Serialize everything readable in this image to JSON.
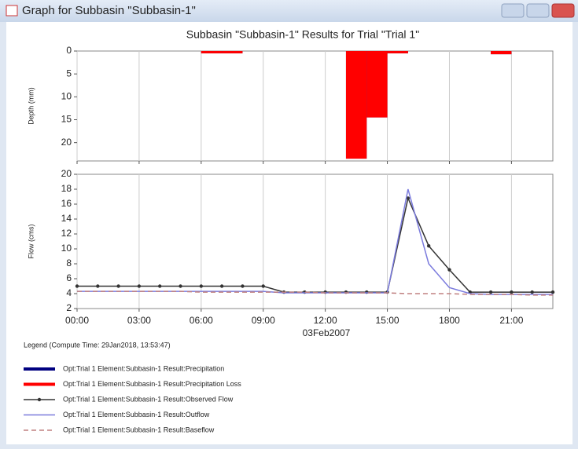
{
  "window": {
    "title": "Graph for Subbasin \"Subbasin-1\""
  },
  "legend": {
    "title": "Legend (Compute Time: 29Jan2018, 13:53:47)"
  },
  "chart_data": [
    {
      "type": "bar",
      "title": "Subbasin \"Subbasin-1\" Results for Trial \"Trial 1\"",
      "ylabel": "Depth (mm)",
      "ylim": [
        0,
        24
      ],
      "yticks": [
        0,
        5,
        10,
        15,
        20
      ],
      "y_inverted": true,
      "xlim": [
        0,
        23
      ],
      "xticks": [
        0,
        3,
        6,
        9,
        12,
        15,
        18,
        21
      ],
      "bar_width": 1,
      "grid": true,
      "series": [
        {
          "name": "Opt:Trial 1 Element:Subbasin-1 Result:Precipitation",
          "color": "#000080",
          "x": [
            6,
            7,
            13,
            14,
            15,
            20
          ],
          "values": [
            0.5,
            0.5,
            23.5,
            14.5,
            0.5,
            0.7
          ]
        },
        {
          "name": "Opt:Trial 1 Element:Subbasin-1 Result:Precipitation Loss",
          "color": "#ff0000",
          "x": [
            6,
            7,
            13,
            14,
            15,
            20
          ],
          "values": [
            0.5,
            0.5,
            23.5,
            14.5,
            0.5,
            0.7
          ]
        }
      ]
    },
    {
      "type": "line",
      "ylabel": "Flow (cms)",
      "xlabel": "03Feb2007",
      "ylim": [
        2,
        20
      ],
      "yticks": [
        2,
        4,
        6,
        8,
        10,
        12,
        14,
        16,
        18,
        20
      ],
      "xlim": [
        0,
        23
      ],
      "xticks": [
        {
          "value": 0,
          "label": "00:00"
        },
        {
          "value": 3,
          "label": "03:00"
        },
        {
          "value": 6,
          "label": "06:00"
        },
        {
          "value": 9,
          "label": "09:00"
        },
        {
          "value": 12,
          "label": "12:00"
        },
        {
          "value": 15,
          "label": "15:00"
        },
        {
          "value": 18,
          "label": "1800"
        },
        {
          "value": 21,
          "label": "21:00"
        }
      ],
      "grid": true,
      "x": [
        0,
        1,
        2,
        3,
        4,
        5,
        6,
        7,
        8,
        9,
        10,
        11,
        12,
        13,
        14,
        15,
        16,
        17,
        18,
        19,
        20,
        21,
        22,
        23
      ],
      "series": [
        {
          "name": "Opt:Trial 1 Element:Subbasin-1 Result:Observed Flow",
          "color": "#333333",
          "markers": true,
          "values": [
            5,
            5,
            5,
            5,
            5,
            5,
            5,
            5,
            5,
            5,
            4.2,
            4.2,
            4.2,
            4.2,
            4.2,
            4.2,
            16.8,
            10.4,
            7.2,
            4.2,
            4.2,
            4.2,
            4.2,
            4.2
          ]
        },
        {
          "name": "Opt:Trial 1 Element:Subbasin-1 Result:Outflow",
          "color": "#7b7bdd",
          "values": [
            4.3,
            4.3,
            4.3,
            4.3,
            4.3,
            4.3,
            4.3,
            4.3,
            4.3,
            4.3,
            4.1,
            4.1,
            4.1,
            4.1,
            4.1,
            4.1,
            18,
            8,
            4.8,
            4,
            3.9,
            3.9,
            3.9,
            3.9
          ]
        },
        {
          "name": "Opt:Trial 1 Element:Subbasin-1 Result:Baseflow",
          "color": "#c08080",
          "dashed": true,
          "values": [
            4.3,
            4.3,
            4.3,
            4.3,
            4.3,
            4.3,
            4.2,
            4.2,
            4.2,
            4.2,
            4.2,
            4.2,
            4.1,
            4.1,
            4.1,
            4.1,
            4,
            4,
            4,
            3.9,
            3.9,
            3.9,
            3.8,
            3.8
          ]
        }
      ]
    }
  ]
}
